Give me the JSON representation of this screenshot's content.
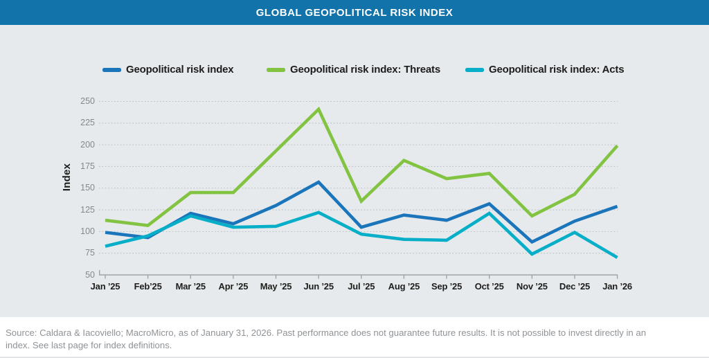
{
  "title": "GLOBAL GEOPOLITICAL RISK INDEX",
  "colors": {
    "titlebar": "#1173a9",
    "panel": "#e6eaed",
    "grid": "#b7bcc0",
    "axis": "#9da3a7",
    "label_text": "#1d1d1b",
    "tick_text": "#84888b",
    "source_text": "#8f9397",
    "series_index": "#1b75bb",
    "series_threats": "#82c341",
    "series_acts": "#07aec8"
  },
  "footer": {
    "lines": [
      "Source: Caldara & Iacoviello; MacroMicro, as of January 31, 2026. Past performance does not guarantee future results. It is not possible to invest directly in an",
      "index. See last page for index definitions."
    ]
  },
  "chart_data": {
    "type": "line",
    "title": "GLOBAL GEOPOLITICAL RISK INDEX",
    "x": [
      "Jan ’25",
      "Feb’25",
      "Mar ’25",
      "Apr ’25",
      "May ’25",
      "Jun ’25",
      "Jul ’25",
      "Aug ’25",
      "Sep ’25",
      "Oct ’25",
      "Nov ’25",
      "Dec ’25",
      "Jan ’26"
    ],
    "xlabel": "",
    "ylabel": "Index",
    "ylim": [
      50,
      250
    ],
    "yticks": [
      50,
      75,
      100,
      125,
      150,
      175,
      200,
      225,
      250
    ],
    "grid": "horizontal-dotted",
    "legend_position": "top",
    "series": [
      {
        "name": "Geopolitical risk index",
        "color": "#1b75bb",
        "values": [
          99,
          93,
          121,
          109,
          130,
          157,
          105,
          119,
          113,
          132,
          88,
          112,
          129
        ]
      },
      {
        "name": "Geopolitical risk index: Threats",
        "color": "#82c341",
        "values": [
          113,
          107,
          145,
          145,
          193,
          241,
          135,
          182,
          161,
          167,
          118,
          143,
          199
        ]
      },
      {
        "name": "Geopolitical risk index: Acts",
        "color": "#07aec8",
        "values": [
          83,
          95,
          118,
          105,
          106,
          122,
          97,
          91,
          90,
          121,
          74,
          99,
          70
        ]
      }
    ]
  }
}
